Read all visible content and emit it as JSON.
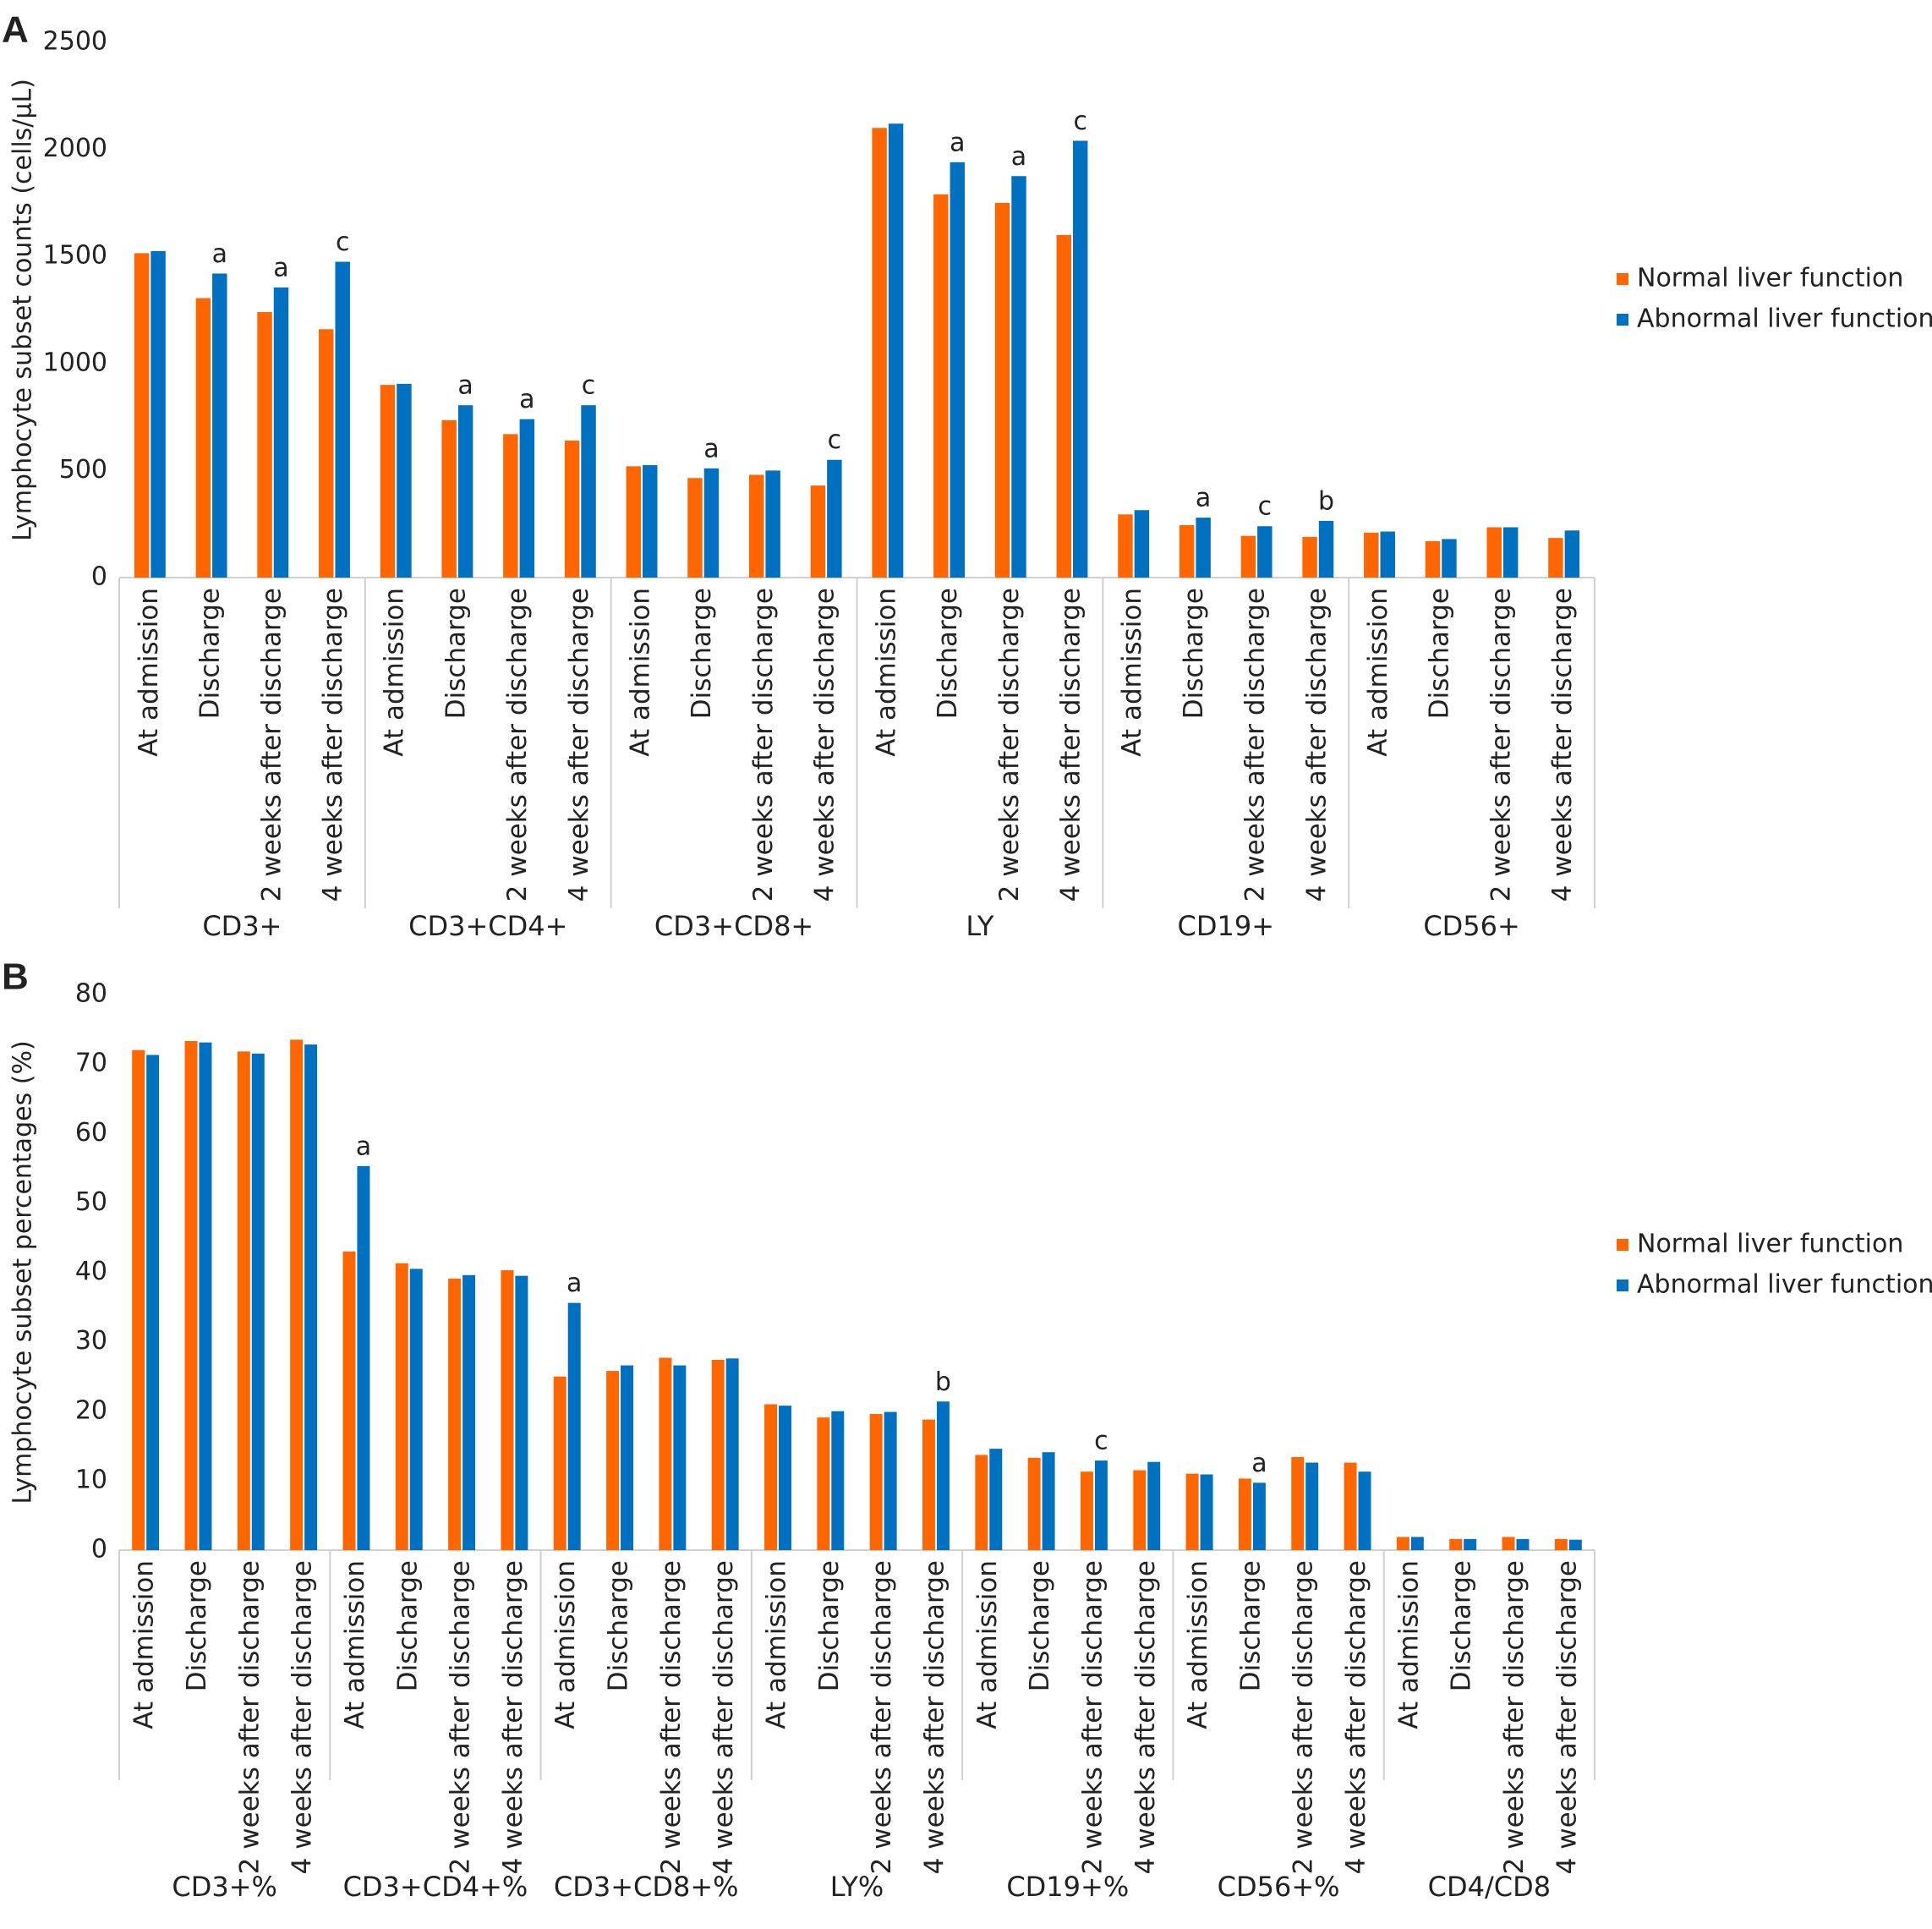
{
  "chart_data": [
    {
      "type": "bar",
      "panel": "A",
      "y_label": "Lymphocyte subset counts (cells/µL)",
      "groups": [
        "CD3+",
        "CD3+CD4+",
        "CD3+CD8+",
        "LY",
        "CD19+",
        "CD56+"
      ],
      "categories": [
        "At admission",
        "Discharge",
        "2 weeks after discharge",
        "4 weeks after discharge",
        "At admission",
        "Discharge",
        "2 weeks after discharge",
        "4 weeks after discharge",
        "At admission",
        "Discharge",
        "2 weeks after discharge",
        "4 weeks after discharge",
        "At admission",
        "Discharge",
        "2 weeks after discharge",
        "4 weeks after discharge",
        "At admission",
        "Discharge",
        "2 weeks after discharge",
        "4 weeks after discharge",
        "At admission",
        "Discharge",
        "2 weeks after discharge",
        "4 weeks after discharge"
      ],
      "series": [
        {
          "name": "Normal liver function",
          "color": "#ff6600",
          "values": [
            1515,
            1305,
            1240,
            1160,
            900,
            735,
            670,
            640,
            520,
            465,
            480,
            430,
            2100,
            1790,
            1750,
            1600,
            295,
            245,
            195,
            190,
            210,
            170,
            235,
            185
          ]
        },
        {
          "name": "Abnormal liver function",
          "color": "#0070c0",
          "values": [
            1525,
            1420,
            1355,
            1475,
            905,
            805,
            740,
            805,
            525,
            510,
            500,
            550,
            2120,
            1940,
            1875,
            2040,
            315,
            280,
            240,
            265,
            215,
            180,
            235,
            220
          ],
          "annotations": [
            null,
            "a",
            "a",
            "c",
            null,
            "a",
            "a",
            "c",
            null,
            "a",
            null,
            "c",
            null,
            "a",
            "a",
            "c",
            null,
            "a",
            "c",
            "b",
            null,
            null,
            null,
            null
          ]
        }
      ],
      "ylim": [
        0,
        2500
      ],
      "yticks": [
        0,
        500,
        1000,
        1500,
        2000,
        2500
      ],
      "grid": false,
      "legend": "right"
    },
    {
      "type": "bar",
      "panel": "B",
      "y_label": "Lymphocyte subset percentages (%)",
      "groups": [
        "CD3+%",
        "CD3+CD4+%",
        "CD3+CD8+%",
        "LY%",
        "CD19+%",
        "CD56+%",
        "CD4/CD8"
      ],
      "categories": [
        "At admission",
        "Discharge",
        "2 weeks after discharge",
        "4 weeks after discharge",
        "At admission",
        "Discharge",
        "2 weeks after discharge",
        "4 weeks after discharge",
        "At admission",
        "Discharge",
        "2 weeks after discharge",
        "4 weeks after discharge",
        "At admission",
        "Discharge",
        "2 weeks after discharge",
        "4 weeks after discharge",
        "At admission",
        "Discharge",
        "2 weeks after discharge",
        "4 weeks after discharge",
        "At admission",
        "Discharge",
        "2 weeks after discharge",
        "4 weeks after discharge",
        "At admission",
        "Discharge",
        "2 weeks after discharge",
        "4 weeks after discharge"
      ],
      "series": [
        {
          "name": "Normal liver function",
          "color": "#ff6600",
          "values": [
            72,
            73.3,
            71.8,
            73.5,
            43,
            41.3,
            39.1,
            40.3,
            25,
            25.8,
            27.7,
            27.4,
            21,
            19.1,
            19.6,
            18.8,
            13.7,
            13.3,
            11.3,
            11.5,
            11,
            10.3,
            13.4,
            12.6,
            1.9,
            1.6,
            1.9,
            1.6
          ]
        },
        {
          "name": "Abnormal liver function",
          "color": "#0070c0",
          "values": [
            71.3,
            73.1,
            71.5,
            72.8,
            55.3,
            40.5,
            39.6,
            39.5,
            35.6,
            26.6,
            26.6,
            27.6,
            20.8,
            20,
            19.9,
            21.4,
            14.6,
            14.1,
            12.9,
            12.7,
            10.9,
            9.7,
            12.6,
            11.3,
            1.9,
            1.6,
            1.6,
            1.5
          ],
          "annotations": [
            null,
            null,
            null,
            null,
            "a",
            null,
            null,
            null,
            "a",
            null,
            null,
            null,
            null,
            null,
            null,
            "b",
            null,
            null,
            "c",
            null,
            null,
            "a",
            null,
            null,
            null,
            null,
            null,
            null
          ]
        }
      ],
      "ylim": [
        0,
        80
      ],
      "yticks": [
        0,
        10,
        20,
        30,
        40,
        50,
        60,
        70,
        80
      ],
      "grid": false,
      "legend": "right"
    }
  ]
}
